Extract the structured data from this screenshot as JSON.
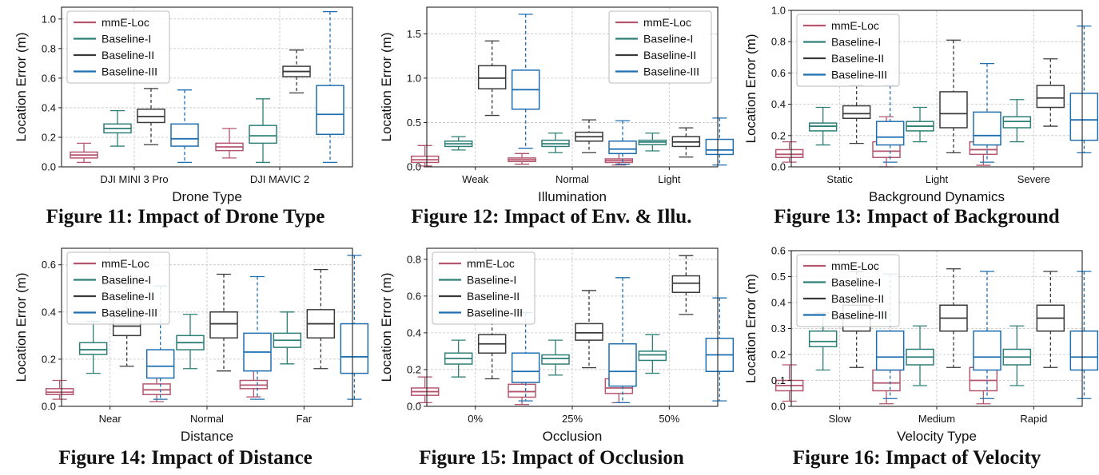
{
  "legend_labels": [
    "mmE-Loc",
    "Baseline-I",
    "Baseline-II",
    "Baseline-III"
  ],
  "series_colors": [
    "#b5566f",
    "#2e7f77",
    "#3a3a3a",
    "#1f6fb0"
  ],
  "chart_data": [
    {
      "type": "box",
      "caption": "Figure 11: Impact of Drone Type",
      "xlabel": "Drone Type",
      "ylabel": "Location Error (m)",
      "categories": [
        "DJI MINI 3 Pro",
        "DJI MAVIC 2"
      ],
      "ylim": [
        0,
        1.08
      ],
      "yticks": [
        0.0,
        0.2,
        0.4,
        0.6,
        0.8,
        1.0
      ],
      "ytick_labels": [
        "0.0",
        "0.2",
        "0.4",
        "0.6",
        "0.8",
        "1.0"
      ],
      "legend": "top-left",
      "series": [
        {
          "name": "mmE-Loc",
          "boxes": [
            {
              "min": 0.03,
              "q1": 0.06,
              "median": 0.08,
              "q3": 0.1,
              "max": 0.16
            },
            {
              "min": 0.06,
              "q1": 0.11,
              "median": 0.135,
              "q3": 0.16,
              "max": 0.26
            }
          ]
        },
        {
          "name": "Baseline-I",
          "boxes": [
            {
              "min": 0.14,
              "q1": 0.23,
              "median": 0.26,
              "q3": 0.29,
              "max": 0.38
            },
            {
              "min": 0.03,
              "q1": 0.16,
              "median": 0.21,
              "q3": 0.28,
              "max": 0.46
            }
          ]
        },
        {
          "name": "Baseline-II",
          "boxes": [
            {
              "min": 0.15,
              "q1": 0.3,
              "median": 0.34,
              "q3": 0.39,
              "max": 0.53
            },
            {
              "min": 0.5,
              "q1": 0.61,
              "median": 0.645,
              "q3": 0.68,
              "max": 0.79
            }
          ]
        },
        {
          "name": "Baseline-III",
          "boxes": [
            {
              "min": 0.03,
              "q1": 0.14,
              "median": 0.19,
              "q3": 0.29,
              "max": 0.52
            },
            {
              "min": 0.03,
              "q1": 0.22,
              "median": 0.355,
              "q3": 0.55,
              "max": 1.05
            }
          ]
        }
      ]
    },
    {
      "type": "box",
      "caption": "Figure 12: Impact of Env. & Illu.",
      "xlabel": "Illumination",
      "ylabel": "Location Error (m)",
      "categories": [
        "Weak",
        "Normal",
        "Light"
      ],
      "ylim": [
        0,
        1.8
      ],
      "yticks": [
        0.0,
        0.5,
        1.0,
        1.5
      ],
      "ytick_labels": [
        "0.0",
        "0.5",
        "1.0",
        "1.5"
      ],
      "legend": "top-right",
      "series": [
        {
          "name": "mmE-Loc",
          "boxes": [
            {
              "min": 0.01,
              "q1": 0.05,
              "median": 0.08,
              "q3": 0.12,
              "max": 0.24
            },
            {
              "min": 0.03,
              "q1": 0.06,
              "median": 0.08,
              "q3": 0.1,
              "max": 0.15
            },
            {
              "min": 0.02,
              "q1": 0.05,
              "median": 0.07,
              "q3": 0.09,
              "max": 0.15
            }
          ]
        },
        {
          "name": "Baseline-I",
          "boxes": [
            {
              "min": 0.19,
              "q1": 0.23,
              "median": 0.26,
              "q3": 0.29,
              "max": 0.34
            },
            {
              "min": 0.16,
              "q1": 0.23,
              "median": 0.26,
              "q3": 0.3,
              "max": 0.38
            },
            {
              "min": 0.18,
              "q1": 0.25,
              "median": 0.28,
              "q3": 0.3,
              "max": 0.38
            }
          ]
        },
        {
          "name": "Baseline-II",
          "boxes": [
            {
              "min": 0.58,
              "q1": 0.88,
              "median": 1.0,
              "q3": 1.14,
              "max": 1.42
            },
            {
              "min": 0.16,
              "q1": 0.29,
              "median": 0.34,
              "q3": 0.39,
              "max": 0.53
            },
            {
              "min": 0.11,
              "q1": 0.23,
              "median": 0.28,
              "q3": 0.34,
              "max": 0.44
            }
          ]
        },
        {
          "name": "Baseline-III",
          "boxes": [
            {
              "min": 0.21,
              "q1": 0.65,
              "median": 0.87,
              "q3": 1.09,
              "max": 1.72
            },
            {
              "min": 0.03,
              "q1": 0.15,
              "median": 0.2,
              "q3": 0.29,
              "max": 0.52
            },
            {
              "min": 0.02,
              "q1": 0.14,
              "median": 0.19,
              "q3": 0.31,
              "max": 0.55
            }
          ]
        }
      ]
    },
    {
      "type": "box",
      "caption": "Figure 13: Impact of Background",
      "xlabel": "Background Dynamics",
      "ylabel": "Location Error (m)",
      "categories": [
        "Static",
        "Light",
        "Severe"
      ],
      "ylim": [
        0,
        1.0
      ],
      "yticks": [
        0.0,
        0.2,
        0.4,
        0.6,
        0.8,
        1.0
      ],
      "ytick_labels": [
        "0.0",
        "0.2",
        "0.4",
        "0.6",
        "0.8",
        "1.0"
      ],
      "legend": "top-left",
      "series": [
        {
          "name": "mmE-Loc",
          "boxes": [
            {
              "min": 0.03,
              "q1": 0.06,
              "median": 0.08,
              "q3": 0.11,
              "max": 0.16
            },
            {
              "min": 0.0,
              "q1": 0.06,
              "median": 0.1,
              "q3": 0.16,
              "max": 0.32
            },
            {
              "min": 0.01,
              "q1": 0.08,
              "median": 0.11,
              "q3": 0.16,
              "max": 0.29
            }
          ]
        },
        {
          "name": "Baseline-I",
          "boxes": [
            {
              "min": 0.14,
              "q1": 0.23,
              "median": 0.26,
              "q3": 0.28,
              "max": 0.38
            },
            {
              "min": 0.16,
              "q1": 0.23,
              "median": 0.26,
              "q3": 0.29,
              "max": 0.38
            },
            {
              "min": 0.16,
              "q1": 0.25,
              "median": 0.29,
              "q3": 0.32,
              "max": 0.43
            }
          ]
        },
        {
          "name": "Baseline-II",
          "boxes": [
            {
              "min": 0.15,
              "q1": 0.31,
              "median": 0.34,
              "q3": 0.39,
              "max": 0.52
            },
            {
              "min": 0.09,
              "q1": 0.25,
              "median": 0.34,
              "q3": 0.48,
              "max": 0.81
            },
            {
              "min": 0.26,
              "q1": 0.38,
              "median": 0.44,
              "q3": 0.52,
              "max": 0.69
            }
          ]
        },
        {
          "name": "Baseline-III",
          "boxes": [
            {
              "min": 0.03,
              "q1": 0.14,
              "median": 0.19,
              "q3": 0.29,
              "max": 0.52
            },
            {
              "min": 0.03,
              "q1": 0.14,
              "median": 0.2,
              "q3": 0.35,
              "max": 0.66
            },
            {
              "min": 0.09,
              "q1": 0.17,
              "median": 0.3,
              "q3": 0.47,
              "max": 0.9
            }
          ]
        }
      ]
    },
    {
      "type": "box",
      "caption": "Figure 14: Impact of Distance",
      "xlabel": "Distance",
      "ylabel": "Location Error (m)",
      "categories": [
        "Near",
        "Normal",
        "Far"
      ],
      "ylim": [
        0,
        0.67
      ],
      "yticks": [
        0.0,
        0.2,
        0.4,
        0.6
      ],
      "ytick_labels": [
        "0.0",
        "0.2",
        "0.4",
        "0.6"
      ],
      "legend": "top-left",
      "series": [
        {
          "name": "mmE-Loc",
          "boxes": [
            {
              "min": 0.03,
              "q1": 0.05,
              "median": 0.06,
              "q3": 0.075,
              "max": 0.11
            },
            {
              "min": 0.02,
              "q1": 0.05,
              "median": 0.07,
              "q3": 0.095,
              "max": 0.15
            },
            {
              "min": 0.04,
              "q1": 0.075,
              "median": 0.09,
              "q3": 0.11,
              "max": 0.16
            }
          ]
        },
        {
          "name": "Baseline-I",
          "boxes": [
            {
              "min": 0.14,
              "q1": 0.22,
              "median": 0.24,
              "q3": 0.27,
              "max": 0.36
            },
            {
              "min": 0.16,
              "q1": 0.24,
              "median": 0.27,
              "q3": 0.3,
              "max": 0.39
            },
            {
              "min": 0.18,
              "q1": 0.25,
              "median": 0.28,
              "q3": 0.31,
              "max": 0.4
            }
          ]
        },
        {
          "name": "Baseline-II",
          "boxes": [
            {
              "min": 0.17,
              "q1": 0.3,
              "median": 0.34,
              "q3": 0.38,
              "max": 0.52
            },
            {
              "min": 0.15,
              "q1": 0.29,
              "median": 0.35,
              "q3": 0.4,
              "max": 0.56
            },
            {
              "min": 0.16,
              "q1": 0.29,
              "median": 0.35,
              "q3": 0.41,
              "max": 0.58
            }
          ]
        },
        {
          "name": "Baseline-III",
          "boxes": [
            {
              "min": 0.03,
              "q1": 0.12,
              "median": 0.17,
              "q3": 0.24,
              "max": 0.51
            },
            {
              "min": 0.03,
              "q1": 0.15,
              "median": 0.23,
              "q3": 0.31,
              "max": 0.55
            },
            {
              "min": 0.03,
              "q1": 0.14,
              "median": 0.21,
              "q3": 0.35,
              "max": 0.64
            }
          ]
        }
      ]
    },
    {
      "type": "box",
      "caption": "Figure 15: Impact of Occlusion",
      "xlabel": "Occlusion",
      "ylabel": "Location Error (m)",
      "categories": [
        "0%",
        "25%",
        "50%"
      ],
      "ylim": [
        0,
        0.86
      ],
      "yticks": [
        0.0,
        0.2,
        0.4,
        0.6,
        0.8
      ],
      "ytick_labels": [
        "0.0",
        "0.2",
        "0.4",
        "0.6",
        "0.8"
      ],
      "legend": "top-left",
      "series": [
        {
          "name": "mmE-Loc",
          "boxes": [
            {
              "min": 0.02,
              "q1": 0.06,
              "median": 0.08,
              "q3": 0.1,
              "max": 0.16
            },
            {
              "min": 0.01,
              "q1": 0.05,
              "median": 0.08,
              "q3": 0.12,
              "max": 0.22
            },
            {
              "min": 0.02,
              "q1": 0.07,
              "median": 0.1,
              "q3": 0.15,
              "max": 0.25
            }
          ]
        },
        {
          "name": "Baseline-I",
          "boxes": [
            {
              "min": 0.16,
              "q1": 0.23,
              "median": 0.26,
              "q3": 0.29,
              "max": 0.36
            },
            {
              "min": 0.17,
              "q1": 0.23,
              "median": 0.26,
              "q3": 0.28,
              "max": 0.36
            },
            {
              "min": 0.18,
              "q1": 0.25,
              "median": 0.28,
              "q3": 0.3,
              "max": 0.39
            }
          ]
        },
        {
          "name": "Baseline-II",
          "boxes": [
            {
              "min": 0.15,
              "q1": 0.29,
              "median": 0.34,
              "q3": 0.39,
              "max": 0.52
            },
            {
              "min": 0.21,
              "q1": 0.36,
              "median": 0.4,
              "q3": 0.45,
              "max": 0.63
            },
            {
              "min": 0.5,
              "q1": 0.62,
              "median": 0.67,
              "q3": 0.71,
              "max": 0.82
            }
          ]
        },
        {
          "name": "Baseline-III",
          "boxes": [
            {
              "min": 0.03,
              "q1": 0.13,
              "median": 0.19,
              "q3": 0.29,
              "max": 0.51
            },
            {
              "min": 0.02,
              "q1": 0.11,
              "median": 0.19,
              "q3": 0.34,
              "max": 0.7
            },
            {
              "min": 0.03,
              "q1": 0.19,
              "median": 0.28,
              "q3": 0.37,
              "max": 0.59
            }
          ]
        }
      ]
    },
    {
      "type": "box",
      "caption": "Figure 16: Impact of Velocity",
      "xlabel": "Velocity Type",
      "ylabel": "Location Error (m)",
      "categories": [
        "Slow",
        "Medium",
        "Rapid"
      ],
      "ylim": [
        0,
        0.6
      ],
      "yticks": [
        0.0,
        0.1,
        0.2,
        0.3,
        0.4,
        0.5,
        0.6
      ],
      "ytick_labels": [
        "0.0",
        "0.1",
        "0.2",
        "0.3",
        "0.4",
        "0.5",
        "0.6"
      ],
      "legend": "top-left",
      "series": [
        {
          "name": "mmE-Loc",
          "boxes": [
            {
              "min": 0.02,
              "q1": 0.06,
              "median": 0.08,
              "q3": 0.1,
              "max": 0.16
            },
            {
              "min": 0.01,
              "q1": 0.06,
              "median": 0.09,
              "q3": 0.14,
              "max": 0.26
            },
            {
              "min": 0.01,
              "q1": 0.06,
              "median": 0.1,
              "q3": 0.15,
              "max": 0.28
            }
          ]
        },
        {
          "name": "Baseline-I",
          "boxes": [
            {
              "min": 0.14,
              "q1": 0.23,
              "median": 0.25,
              "q3": 0.29,
              "max": 0.36
            },
            {
              "min": 0.08,
              "q1": 0.16,
              "median": 0.19,
              "q3": 0.22,
              "max": 0.31
            },
            {
              "min": 0.08,
              "q1": 0.16,
              "median": 0.19,
              "q3": 0.22,
              "max": 0.31
            }
          ]
        },
        {
          "name": "Baseline-II",
          "boxes": [
            {
              "min": 0.15,
              "q1": 0.29,
              "median": 0.34,
              "q3": 0.39,
              "max": 0.52
            },
            {
              "min": 0.15,
              "q1": 0.29,
              "median": 0.34,
              "q3": 0.39,
              "max": 0.53
            },
            {
              "min": 0.15,
              "q1": 0.29,
              "median": 0.34,
              "q3": 0.39,
              "max": 0.52
            }
          ]
        },
        {
          "name": "Baseline-III",
          "boxes": [
            {
              "min": 0.03,
              "q1": 0.14,
              "median": 0.19,
              "q3": 0.29,
              "max": 0.51
            },
            {
              "min": 0.03,
              "q1": 0.14,
              "median": 0.19,
              "q3": 0.29,
              "max": 0.52
            },
            {
              "min": 0.03,
              "q1": 0.14,
              "median": 0.19,
              "q3": 0.29,
              "max": 0.52
            }
          ]
        }
      ]
    }
  ]
}
